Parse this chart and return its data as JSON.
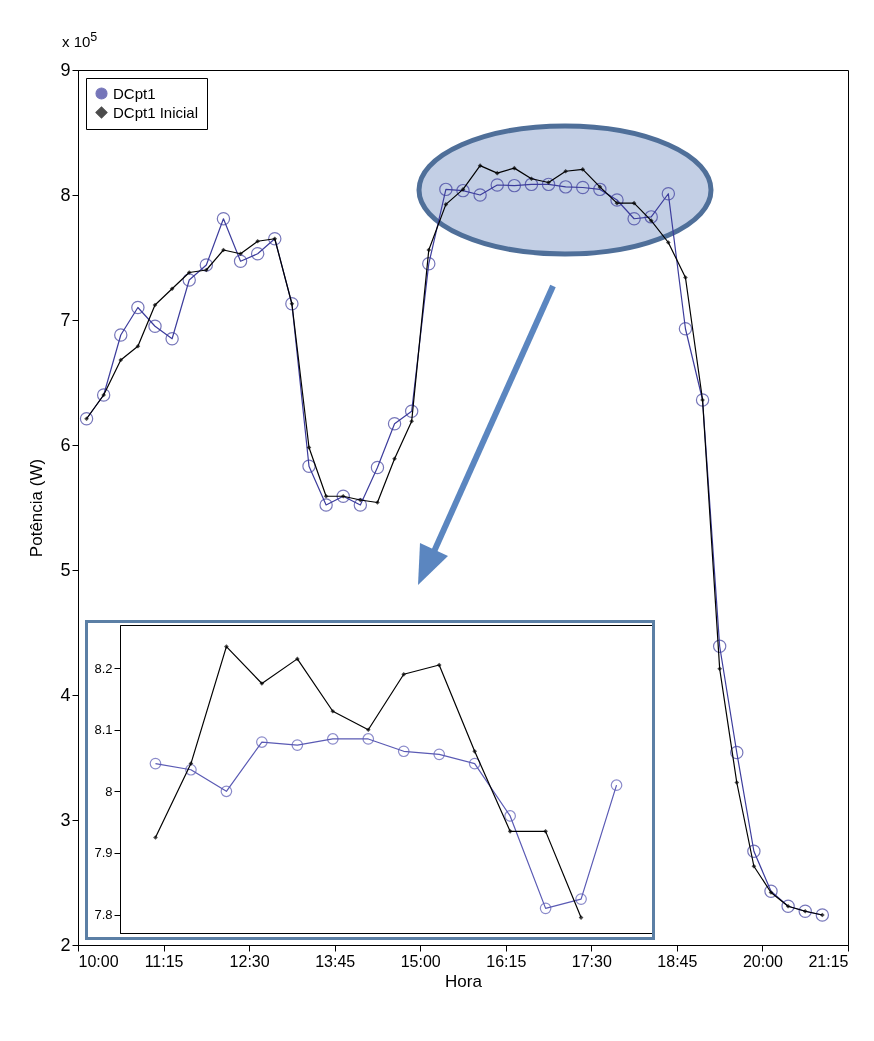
{
  "chart_data": [
    {
      "type": "line",
      "xlabel": "Hora",
      "ylabel": "Potência (W)",
      "annotations": [
        "x 10$^{5}$"
      ],
      "x": [
        10.125,
        10.375,
        10.625,
        10.875,
        11.125,
        11.375,
        11.625,
        11.875,
        12.125,
        12.375,
        12.625,
        12.875,
        13.125,
        13.375,
        13.625,
        13.875,
        14.125,
        14.375,
        14.625,
        14.875,
        15.125,
        15.375,
        15.625,
        15.875,
        16.125,
        16.375,
        16.625,
        16.875,
        17.125,
        17.375,
        17.625,
        17.875,
        18.125,
        18.375,
        18.625,
        18.875,
        19.125,
        19.375,
        19.625,
        19.875,
        20.125,
        20.375,
        20.625,
        20.875
      ],
      "series": [
        {
          "name": "DCpt1",
          "color": "#3c3c9c",
          "marker": "circle",
          "values": [
            6.21,
            6.4,
            6.88,
            7.1,
            6.95,
            6.85,
            7.32,
            7.44,
            7.81,
            7.47,
            7.53,
            7.65,
            7.13,
            5.83,
            5.52,
            5.59,
            5.52,
            5.82,
            6.17,
            6.27,
            7.45,
            8.045,
            8.035,
            8.0,
            8.08,
            8.075,
            8.085,
            8.085,
            8.065,
            8.06,
            8.045,
            7.96,
            7.81,
            7.825,
            8.01,
            6.93,
            6.36,
            4.39,
            3.54,
            2.75,
            2.43,
            2.31,
            2.27,
            2.24
          ]
        },
        {
          "name": "DCpt1 Inicial",
          "color": "#000000",
          "marker": "diamond",
          "values": [
            6.21,
            6.4,
            6.68,
            6.79,
            7.12,
            7.25,
            7.38,
            7.4,
            7.56,
            7.53,
            7.63,
            7.65,
            7.13,
            5.98,
            5.59,
            5.59,
            5.56,
            5.54,
            5.89,
            6.19,
            7.56,
            7.925,
            8.045,
            8.235,
            8.175,
            8.215,
            8.13,
            8.1,
            8.19,
            8.205,
            8.065,
            7.935,
            7.935,
            7.795,
            7.62,
            7.34,
            6.36,
            4.21,
            3.3,
            2.63,
            2.42,
            2.31,
            2.27,
            2.24
          ]
        }
      ],
      "xlim": [
        10,
        21.25
      ],
      "xticks": [
        {
          "value": 10,
          "label": "10:00"
        },
        {
          "value": 11.25,
          "label": "11:15"
        },
        {
          "value": 12.5,
          "label": "12:30"
        },
        {
          "value": 13.75,
          "label": "13:45"
        },
        {
          "value": 15,
          "label": "15:00"
        },
        {
          "value": 16.25,
          "label": "16:15"
        },
        {
          "value": 17.5,
          "label": "17:30"
        },
        {
          "value": 18.75,
          "label": "18:45"
        },
        {
          "value": 20,
          "label": "20:00"
        },
        {
          "value": 21.25,
          "label": "21:15"
        }
      ],
      "ylim": [
        2,
        9
      ],
      "yticks": [
        2,
        3,
        4,
        5,
        6,
        7,
        8,
        9
      ],
      "legend": "top left"
    },
    {
      "type": "line",
      "tick_labels": "y",
      "categories": [
        null,
        null,
        null,
        null,
        null,
        null,
        null,
        null,
        null,
        null,
        null,
        null,
        null,
        null
      ],
      "series": [
        {
          "color": "#5a5ab4",
          "marker": "circle",
          "values": [
            8.045,
            8.035,
            8.0,
            8.08,
            8.075,
            8.085,
            8.085,
            8.065,
            8.06,
            8.045,
            7.96,
            7.81,
            7.825,
            8.01
          ]
        },
        {
          "color": "#000000",
          "marker": "diamond",
          "values": [
            7.925,
            8.045,
            8.235,
            8.175,
            8.215,
            8.13,
            8.1,
            8.19,
            8.205,
            8.065,
            7.935,
            7.935,
            7.795,
            null
          ]
        }
      ],
      "ylim": [
        7.77,
        8.27
      ],
      "yticks": [
        7.8,
        7.9,
        8,
        8.1,
        8.2
      ]
    }
  ]
}
